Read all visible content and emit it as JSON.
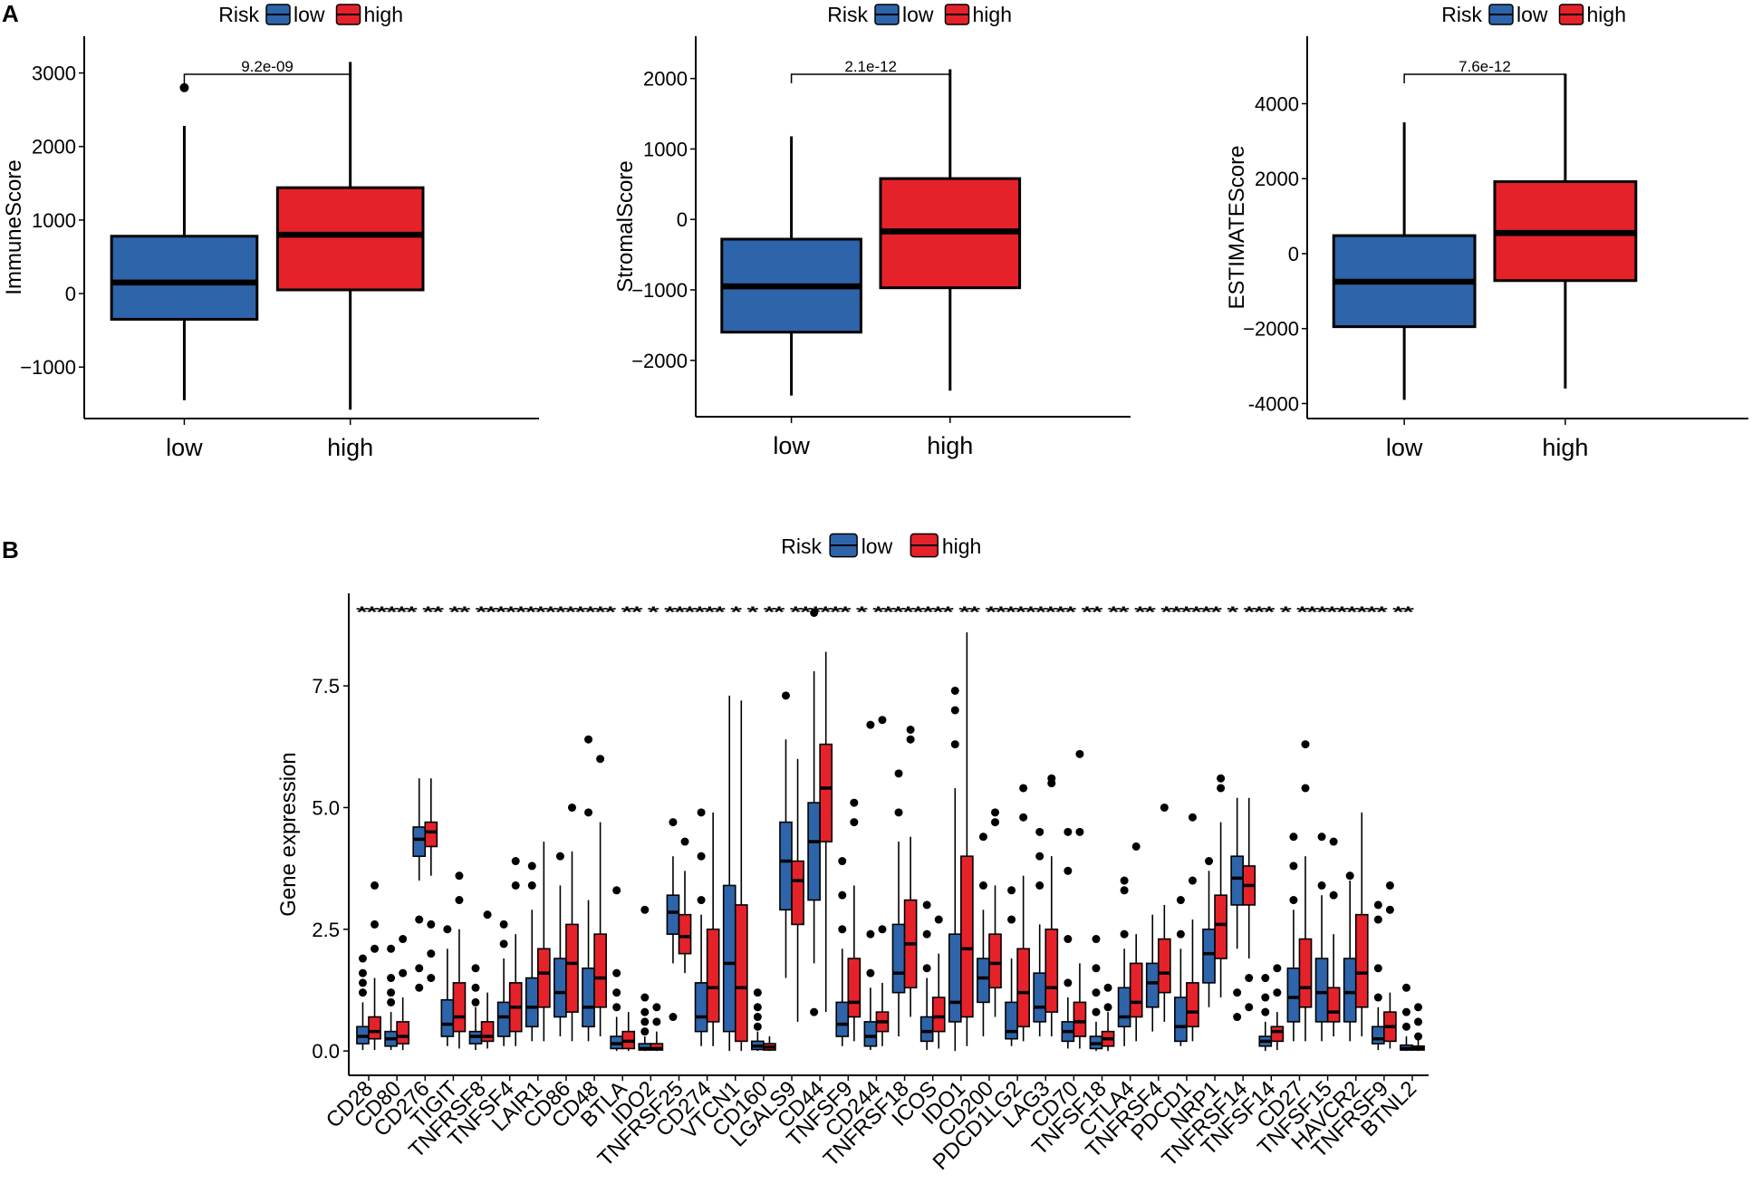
{
  "panel_a_letter": "A",
  "panel_b_letter": "B",
  "colors": {
    "low": "#2E64AA",
    "high": "#E5222A"
  },
  "chart_data": [
    {
      "type": "boxplot",
      "title": "",
      "legend": {
        "title": "Risk",
        "labels": [
          "low",
          "high"
        ],
        "placement": "top"
      },
      "xlabel": "",
      "ylabel": "ImmuneScore",
      "categories": [
        "low",
        "high"
      ],
      "ylim": [
        -1700,
        3500
      ],
      "yticks": [
        -1000,
        0,
        1000,
        2000,
        3000
      ],
      "ytick_labels": [
        "−1000",
        "0",
        "1000",
        "2000",
        "3000"
      ],
      "pvalue": "9.2e-09",
      "boxes": [
        {
          "name": "low",
          "min": -1450,
          "q1": -350,
          "median": 150,
          "q3": 780,
          "max": 2280,
          "outliers": [
            2800
          ]
        },
        {
          "name": "high",
          "min": -1580,
          "q1": 50,
          "median": 800,
          "q3": 1440,
          "max": 3150,
          "outliers": []
        }
      ]
    },
    {
      "type": "boxplot",
      "title": "",
      "legend": {
        "title": "Risk",
        "labels": [
          "low",
          "high"
        ],
        "placement": "top"
      },
      "xlabel": "",
      "ylabel": "StromalScore",
      "categories": [
        "low",
        "high"
      ],
      "ylim": [
        -2800,
        2600
      ],
      "yticks": [
        -2000,
        -1000,
        0,
        1000,
        2000
      ],
      "ytick_labels": [
        "−2000",
        "−1000",
        "0",
        "1000",
        "2000"
      ],
      "pvalue": "2.1e-12",
      "boxes": [
        {
          "name": "low",
          "min": -2500,
          "q1": -1600,
          "median": -950,
          "q3": -280,
          "max": 1180,
          "outliers": []
        },
        {
          "name": "high",
          "min": -2430,
          "q1": -970,
          "median": -170,
          "q3": 580,
          "max": 2130,
          "outliers": []
        }
      ]
    },
    {
      "type": "boxplot",
      "title": "",
      "legend": {
        "title": "Risk",
        "labels": [
          "low",
          "high"
        ],
        "placement": "top"
      },
      "xlabel": "",
      "ylabel": "ESTIMATEScore",
      "categories": [
        "low",
        "high"
      ],
      "ylim": [
        -4400,
        5800
      ],
      "yticks": [
        -4000,
        -2000,
        0,
        2000,
        4000
      ],
      "ytick_labels": [
        "-4000",
        "−2000",
        "0",
        "2000",
        "4000"
      ],
      "pvalue": "7.6e-12",
      "boxes": [
        {
          "name": "low",
          "min": -3900,
          "q1": -1950,
          "median": -750,
          "q3": 480,
          "max": 3500,
          "outliers": []
        },
        {
          "name": "high",
          "min": -3600,
          "q1": -720,
          "median": 550,
          "q3": 1920,
          "max": 4800,
          "outliers": []
        }
      ]
    },
    {
      "type": "boxplot",
      "title": "",
      "legend": {
        "title": "Risk",
        "labels": [
          "low",
          "high"
        ],
        "placement": "top"
      },
      "xlabel": "",
      "ylabel": "Gene expression",
      "ylim": [
        -0.5,
        9.4
      ],
      "yticks": [
        0,
        2.5,
        5,
        7.5
      ],
      "ytick_labels": [
        "0.0",
        "2.5",
        "5.0",
        "7.5"
      ],
      "significance": "****** ** ** ************** ** * ****** * * ** ****** * ******** ** ********* ** ** ** ****** * *** * ********* **",
      "genes": [
        "CD28",
        "CD80",
        "CD276",
        "TIGIT",
        "TNFRSF8",
        "TNFSF4",
        "LAIR1",
        "CD86",
        "CD48",
        "BTLA",
        "IDO2",
        "TNFRSF25",
        "CD274",
        "VTCN1",
        "CD160",
        "LGALS9",
        "CD44",
        "TNFSF9",
        "CD244",
        "TNFRSF18",
        "ICOS",
        "IDO1",
        "CD200",
        "PDCD1LG2",
        "LAG3",
        "CD70",
        "TNFSF18",
        "CTLA4",
        "TNFRSF4",
        "PDCD1",
        "NRP1",
        "TNFRSF14",
        "TNFSF14",
        "CD27",
        "TNFSF15",
        "HAVCR2",
        "TNFRSF9",
        "BTNL2"
      ],
      "series": [
        {
          "name": "low",
          "boxes": [
            [
              0.02,
              0.15,
              0.3,
              0.5,
              1.0
            ],
            [
              0.02,
              0.1,
              0.25,
              0.4,
              0.8
            ],
            [
              3.5,
              4.0,
              4.35,
              4.6,
              5.6
            ],
            [
              0.1,
              0.3,
              0.55,
              1.05,
              2.1
            ],
            [
              0.02,
              0.15,
              0.3,
              0.4,
              0.9
            ],
            [
              0.1,
              0.3,
              0.7,
              1.0,
              1.9
            ],
            [
              0.2,
              0.5,
              0.9,
              1.5,
              2.9
            ],
            [
              0.3,
              0.7,
              1.2,
              1.9,
              3.4
            ],
            [
              0.2,
              0.5,
              0.9,
              1.7,
              3.1
            ],
            [
              0.0,
              0.05,
              0.15,
              0.3,
              0.7
            ],
            [
              0.0,
              0.02,
              0.05,
              0.15,
              0.3
            ],
            [
              1.8,
              2.4,
              2.85,
              3.2,
              4.0
            ],
            [
              0.1,
              0.4,
              0.7,
              1.4,
              2.8
            ],
            [
              0.0,
              0.4,
              1.8,
              3.4,
              7.3
            ],
            [
              0.0,
              0.03,
              0.1,
              0.2,
              0.4
            ],
            [
              1.5,
              2.9,
              3.9,
              4.7,
              6.4
            ],
            [
              1.8,
              3.1,
              4.3,
              5.1,
              7.8
            ],
            [
              0.1,
              0.3,
              0.55,
              1.0,
              2.1
            ],
            [
              0.02,
              0.1,
              0.3,
              0.6,
              1.3
            ],
            [
              0.3,
              1.2,
              1.6,
              2.6,
              4.3
            ],
            [
              0.02,
              0.2,
              0.4,
              0.7,
              1.5
            ],
            [
              0.0,
              0.6,
              1.0,
              2.4,
              5.4
            ],
            [
              0.3,
              1.0,
              1.5,
              1.9,
              2.9
            ],
            [
              0.1,
              0.25,
              0.4,
              1.0,
              1.9
            ],
            [
              0.3,
              0.6,
              0.9,
              1.6,
              2.6
            ],
            [
              0.05,
              0.2,
              0.4,
              0.6,
              1.1
            ],
            [
              0.0,
              0.05,
              0.15,
              0.3,
              0.6
            ],
            [
              0.1,
              0.5,
              0.7,
              1.3,
              2.1
            ],
            [
              0.4,
              0.9,
              1.4,
              1.8,
              2.8
            ],
            [
              0.1,
              0.2,
              0.5,
              1.1,
              2.1
            ],
            [
              0.9,
              1.4,
              2.0,
              2.5,
              3.7
            ],
            [
              2.1,
              3.0,
              3.55,
              4.0,
              5.2
            ],
            [
              0.0,
              0.1,
              0.2,
              0.3,
              0.6
            ],
            [
              0.2,
              0.6,
              1.1,
              1.7,
              2.9
            ],
            [
              0.2,
              0.6,
              1.2,
              1.9,
              3.2
            ],
            [
              0.2,
              0.6,
              1.2,
              1.9,
              3.5
            ],
            [
              0.02,
              0.15,
              0.25,
              0.5,
              0.9
            ],
            [
              0.0,
              0.02,
              0.05,
              0.12,
              0.3
            ]
          ],
          "outliers": [
            [
              1.2,
              1.4,
              1.6,
              1.9
            ],
            [
              1.0,
              1.2,
              1.5,
              2.1
            ],
            [
              2.7,
              1.7,
              1.3
            ],
            [
              2.5
            ],
            [
              1.0,
              1.3,
              1.7
            ],
            [
              2.2,
              2.6
            ],
            [
              3.4,
              3.8
            ],
            [
              4.0
            ],
            [
              4.9,
              6.4
            ],
            [
              0.9,
              1.2,
              1.6,
              3.3
            ],
            [
              0.4,
              0.6,
              0.8,
              1.1,
              2.9
            ],
            [
              4.7,
              0.7
            ],
            [
              3.1,
              4.0,
              4.9
            ],
            [],
            [
              0.5,
              0.7,
              0.9,
              1.2
            ],
            [
              7.3
            ],
            [
              9.0,
              0.8
            ],
            [
              2.5,
              3.2,
              3.9
            ],
            [
              1.6,
              2.4,
              6.7
            ],
            [
              4.9,
              5.7
            ],
            [
              1.7,
              2.4,
              3.0
            ],
            [
              6.3,
              7.0,
              7.4
            ],
            [
              3.4,
              4.4
            ],
            [
              2.7,
              3.3
            ],
            [
              3.4,
              4.0,
              4.5
            ],
            [
              1.4,
              2.3,
              3.7,
              4.5
            ],
            [
              0.8,
              1.2,
              1.7,
              2.3
            ],
            [
              2.4,
              3.3,
              3.5
            ],
            [],
            [
              2.4,
              3.1
            ],
            [
              3.9
            ],
            [
              0.7,
              1.2
            ],
            [
              0.8,
              1.1,
              1.5
            ],
            [
              3.1,
              3.8,
              4.4
            ],
            [
              3.4,
              4.4
            ],
            [
              3.6
            ],
            [
              1.1,
              1.7,
              2.7,
              3.0
            ],
            [
              0.5,
              0.8,
              1.3
            ]
          ]
        },
        {
          "name": "high",
          "boxes": [
            [
              0.02,
              0.25,
              0.4,
              0.7,
              1.5
            ],
            [
              0.02,
              0.15,
              0.3,
              0.6,
              1.1
            ],
            [
              3.6,
              4.2,
              4.5,
              4.7,
              5.6
            ],
            [
              0.05,
              0.4,
              0.7,
              1.4,
              2.5
            ],
            [
              0.05,
              0.2,
              0.3,
              0.6,
              1.2
            ],
            [
              0.1,
              0.4,
              0.9,
              1.4,
              2.4
            ],
            [
              0.2,
              0.9,
              1.6,
              2.1,
              4.3
            ],
            [
              0.2,
              0.8,
              1.8,
              2.6,
              4.1
            ],
            [
              0.3,
              0.9,
              1.5,
              2.4,
              4.7
            ],
            [
              0.0,
              0.05,
              0.2,
              0.4,
              0.8
            ],
            [
              0.0,
              0.02,
              0.05,
              0.15,
              0.4
            ],
            [
              1.6,
              2.0,
              2.35,
              2.8,
              3.7
            ],
            [
              0.1,
              0.6,
              1.3,
              2.5,
              4.9
            ],
            [
              0.0,
              0.2,
              1.3,
              3.0,
              7.2
            ],
            [
              0.0,
              0.02,
              0.08,
              0.15,
              0.3
            ],
            [
              0.6,
              2.6,
              3.5,
              3.9,
              6.0
            ],
            [
              0.8,
              4.3,
              5.4,
              6.3,
              8.2
            ],
            [
              0.2,
              0.7,
              1.0,
              1.9,
              3.4
            ],
            [
              0.1,
              0.4,
              0.6,
              0.8,
              1.4
            ],
            [
              0.7,
              1.3,
              2.2,
              3.1,
              4.4
            ],
            [
              0.05,
              0.4,
              0.7,
              1.1,
              2.0
            ],
            [
              0.1,
              0.7,
              2.1,
              4.0,
              8.6
            ],
            [
              0.7,
              1.3,
              1.8,
              2.4,
              3.4
            ],
            [
              0.2,
              0.5,
              1.2,
              2.1,
              3.6
            ],
            [
              0.3,
              0.8,
              1.3,
              2.5,
              4.0
            ],
            [
              0.05,
              0.3,
              0.6,
              1.0,
              1.8
            ],
            [
              0.0,
              0.1,
              0.25,
              0.4,
              0.8
            ],
            [
              0.2,
              0.7,
              1.0,
              1.8,
              2.4
            ],
            [
              0.6,
              1.2,
              1.6,
              2.3,
              3.0
            ],
            [
              0.2,
              0.5,
              0.8,
              1.4,
              2.7
            ],
            [
              1.1,
              1.9,
              2.6,
              3.2,
              4.7
            ],
            [
              1.9,
              3.0,
              3.4,
              3.8,
              5.2
            ],
            [
              0.02,
              0.2,
              0.4,
              0.5,
              0.8
            ],
            [
              0.2,
              0.9,
              1.3,
              2.3,
              4.0
            ],
            [
              0.3,
              0.6,
              0.8,
              1.3,
              2.4
            ],
            [
              0.3,
              0.9,
              1.6,
              2.8,
              4.9
            ],
            [
              0.05,
              0.2,
              0.5,
              0.8,
              1.2
            ],
            [
              0.0,
              0.02,
              0.05,
              0.1,
              0.25
            ]
          ],
          "outliers": [
            [
              2.1,
              2.6,
              3.4
            ],
            [
              1.6,
              2.3
            ],
            [
              2.6,
              1.5,
              2.0
            ],
            [
              3.1,
              3.6
            ],
            [
              2.8
            ],
            [
              3.4,
              3.9
            ],
            [],
            [
              5.0
            ],
            [
              6.0
            ],
            [],
            [
              0.6,
              0.9
            ],
            [
              4.3
            ],
            [],
            [],
            [],
            [],
            [],
            [
              4.7,
              5.1
            ],
            [
              2.5,
              6.8
            ],
            [
              6.4,
              6.6
            ],
            [
              2.7
            ],
            [],
            [
              4.7,
              4.9
            ],
            [
              4.8,
              5.4
            ],
            [
              5.5,
              5.6
            ],
            [
              4.5,
              6.1
            ],
            [
              0.9,
              1.3
            ],
            [
              4.2
            ],
            [
              5.0
            ],
            [
              3.5,
              4.8
            ],
            [
              5.4,
              5.6
            ],
            [
              0.9,
              1.5
            ],
            [
              1.2,
              1.7
            ],
            [
              5.4,
              6.3
            ],
            [
              3.2,
              4.3
            ],
            [],
            [
              2.9,
              3.4
            ],
            [
              0.3,
              0.6,
              0.9
            ]
          ]
        }
      ]
    }
  ]
}
